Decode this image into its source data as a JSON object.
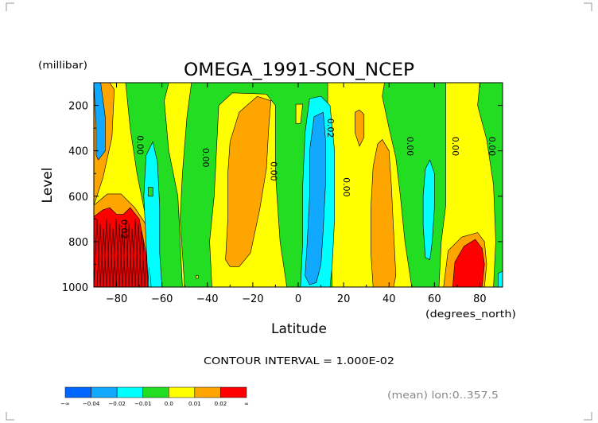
{
  "chart_data": {
    "type": "contour",
    "title": "OMEGA_1991-SON_NCEP",
    "ylabel": "Level",
    "yunit": "(millibar)",
    "xlabel": "Latitude",
    "xunit": "(degrees_north)",
    "xlim": [
      -90,
      90
    ],
    "ylim": [
      1000,
      100
    ],
    "x_ticks": [
      -80,
      -60,
      -40,
      -20,
      0,
      20,
      40,
      60,
      80
    ],
    "y_ticks": [
      200,
      400,
      600,
      800,
      1000
    ],
    "contour_interval_label": "CONTOUR INTERVAL = 1.000E-02",
    "footer_label": "(mean) lon:0..357.5",
    "contour_labels": [
      {
        "text": "0.00",
        "lat": -71,
        "lev": 375
      },
      {
        "text": "0.02",
        "lat": -78,
        "lev": 745
      },
      {
        "text": "0.00",
        "lat": -42,
        "lev": 430
      },
      {
        "text": "0.00",
        "lat": -12,
        "lev": 490
      },
      {
        "text": "0.02",
        "lat": 13,
        "lev": 300
      },
      {
        "text": "0.00",
        "lat": 20,
        "lev": 560
      },
      {
        "text": "0.00",
        "lat": 48,
        "lev": 380
      },
      {
        "text": "0.00",
        "lat": 68,
        "lev": 380
      },
      {
        "text": "0.00",
        "lat": 84,
        "lev": 380
      }
    ],
    "colorbar": {
      "colors": [
        "#0066ff",
        "#11a9ff",
        "#00ffff",
        "#22dd22",
        "#ffff00",
        "#ffa500",
        "#ff0000"
      ],
      "labels": [
        "-∞",
        "-0.04",
        "-0.02",
        "-0.01",
        "0.0",
        "0.01",
        "0.02",
        "∞"
      ]
    },
    "regions": [
      {
        "fill": "#ffff00",
        "points": [
          [
            -90,
            100
          ],
          [
            -90,
            1000
          ],
          [
            -61,
            1000
          ],
          [
            -63,
            880
          ],
          [
            -67,
            700
          ],
          [
            -71,
            500
          ],
          [
            -74,
            300
          ],
          [
            -76,
            100
          ]
        ]
      },
      {
        "fill": "#ffff00",
        "points": [
          [
            -51,
            1000
          ],
          [
            -53,
            600
          ],
          [
            -57,
            400
          ],
          [
            -59,
            180
          ],
          [
            -57,
            100
          ],
          [
            -47,
            100
          ],
          [
            -49,
            250
          ],
          [
            -51,
            500
          ],
          [
            -52,
            700
          ],
          [
            -50,
            1000
          ]
        ]
      },
      {
        "fill": "#ffff00",
        "points": [
          [
            -38,
            1000
          ],
          [
            -39,
            800
          ],
          [
            -37,
            600
          ],
          [
            -36,
            400
          ],
          [
            -35,
            200
          ],
          [
            -29,
            145
          ],
          [
            -14,
            150
          ],
          [
            -10,
            200
          ],
          [
            -10,
            500
          ],
          [
            -8,
            800
          ],
          [
            -5,
            1000
          ]
        ]
      },
      {
        "fill": "#ffff00",
        "points": [
          [
            -1,
            280
          ],
          [
            -1,
            195
          ],
          [
            2,
            195
          ],
          [
            1,
            280
          ]
        ]
      },
      {
        "fill": "#ffff00",
        "points": [
          [
            15,
            1000
          ],
          [
            14,
            700
          ],
          [
            13,
            400
          ],
          [
            13,
            100
          ],
          [
            38,
            100
          ],
          [
            37,
            160
          ],
          [
            40,
            300
          ],
          [
            43,
            430
          ],
          [
            45,
            600
          ],
          [
            47,
            800
          ],
          [
            50,
            1000
          ]
        ]
      },
      {
        "fill": "#ffff00",
        "points": [
          [
            62,
            1000
          ],
          [
            63,
            800
          ],
          [
            65,
            640
          ],
          [
            65,
            300
          ],
          [
            65,
            100
          ],
          [
            80,
            100
          ],
          [
            79,
            200
          ],
          [
            83,
            350
          ],
          [
            86,
            550
          ],
          [
            87,
            800
          ],
          [
            86,
            1000
          ]
        ]
      },
      {
        "fill": "#ffa500",
        "points": [
          [
            -90,
            100
          ],
          [
            -90,
            640
          ],
          [
            -86,
            520
          ],
          [
            -82,
            340
          ],
          [
            -81,
            130
          ],
          [
            -83,
            100
          ]
        ]
      },
      {
        "fill": "#ffa500",
        "points": [
          [
            -32,
            880
          ],
          [
            -31,
            700
          ],
          [
            -31,
            500
          ],
          [
            -30,
            360
          ],
          [
            -26,
            230
          ],
          [
            -18,
            160
          ],
          [
            -12,
            180
          ],
          [
            -13,
            300
          ],
          [
            -14,
            480
          ],
          [
            -17,
            660
          ],
          [
            -21,
            850
          ],
          [
            -26,
            910
          ],
          [
            -30,
            910
          ]
        ]
      },
      {
        "fill": "#ffa500",
        "points": [
          [
            25,
            320
          ],
          [
            25,
            230
          ],
          [
            27,
            220
          ],
          [
            29,
            240
          ],
          [
            29,
            340
          ],
          [
            27,
            380
          ]
        ]
      },
      {
        "fill": "#ffa500",
        "points": [
          [
            33,
            1000
          ],
          [
            32,
            850
          ],
          [
            32,
            650
          ],
          [
            33,
            470
          ],
          [
            35,
            370
          ],
          [
            37,
            350
          ],
          [
            40,
            400
          ],
          [
            41,
            550
          ],
          [
            42,
            750
          ],
          [
            43,
            950
          ],
          [
            42,
            1000
          ]
        ]
      },
      {
        "fill": "#ffa500",
        "points": [
          [
            64,
            1000
          ],
          [
            66,
            840
          ],
          [
            72,
            780
          ],
          [
            79,
            760
          ],
          [
            82,
            800
          ],
          [
            83,
            900
          ],
          [
            82,
            1000
          ]
        ]
      },
      {
        "fill": "#ffa500",
        "points": [
          [
            -90,
            640
          ],
          [
            -84,
            590
          ],
          [
            -78,
            590
          ],
          [
            -72,
            650
          ],
          [
            -66,
            740
          ],
          [
            -64,
            870
          ],
          [
            -62,
            1000
          ],
          [
            -90,
            1000
          ]
        ]
      },
      {
        "fill": "#ff0000",
        "points": [
          [
            -90,
            690
          ],
          [
            -86,
            660
          ],
          [
            -83,
            650
          ],
          [
            -80,
            680
          ],
          [
            -77,
            680
          ],
          [
            -74,
            650
          ],
          [
            -70,
            700
          ],
          [
            -68,
            800
          ],
          [
            -66,
            900
          ],
          [
            -64,
            1000
          ],
          [
            -90,
            1000
          ]
        ]
      },
      {
        "fill": "#ff0000",
        "points": [
          [
            68,
            1000
          ],
          [
            69,
            890
          ],
          [
            73,
            820
          ],
          [
            78,
            790
          ],
          [
            81,
            830
          ],
          [
            82,
            900
          ],
          [
            81,
            1000
          ]
        ]
      },
      {
        "fill": "#11a9ff",
        "points": [
          [
            -90,
            100
          ],
          [
            -89,
            300
          ],
          [
            -89,
            420
          ],
          [
            -88,
            440
          ],
          [
            -85,
            400
          ],
          [
            -85,
            250
          ],
          [
            -87,
            100
          ]
        ]
      },
      {
        "fill": "#00ffff",
        "points": [
          [
            -66,
            1000
          ],
          [
            -67,
            800
          ],
          [
            -68,
            600
          ],
          [
            -67,
            420
          ],
          [
            -64,
            360
          ],
          [
            -62,
            450
          ],
          [
            -61,
            650
          ],
          [
            -61,
            850
          ],
          [
            -60,
            1000
          ]
        ]
      },
      {
        "fill": "#00ffff",
        "points": [
          [
            1,
            1000
          ],
          [
            2,
            800
          ],
          [
            2,
            550
          ],
          [
            3,
            320
          ],
          [
            5,
            170
          ],
          [
            10,
            160
          ],
          [
            14,
            200
          ],
          [
            16,
            400
          ],
          [
            16,
            700
          ],
          [
            15,
            900
          ],
          [
            14,
            1000
          ]
        ]
      },
      {
        "fill": "#11a9ff",
        "points": [
          [
            3,
            950
          ],
          [
            4,
            800
          ],
          [
            5,
            600
          ],
          [
            5,
            400
          ],
          [
            7,
            250
          ],
          [
            11,
            230
          ],
          [
            12,
            350
          ],
          [
            12,
            550
          ],
          [
            11,
            750
          ],
          [
            10,
            900
          ],
          [
            8,
            980
          ],
          [
            5,
            990
          ]
        ]
      },
      {
        "fill": "#00ffff",
        "points": [
          [
            56,
            870
          ],
          [
            55,
            730
          ],
          [
            55,
            600
          ],
          [
            56,
            480
          ],
          [
            58,
            440
          ],
          [
            60,
            500
          ],
          [
            60,
            650
          ],
          [
            59,
            800
          ],
          [
            58,
            880
          ]
        ]
      },
      {
        "fill": "#00ffff",
        "points": [
          [
            88,
            1000
          ],
          [
            88,
            940
          ],
          [
            90,
            930
          ],
          [
            90,
            1000
          ]
        ]
      },
      {
        "fill": "#22dd22",
        "points": [
          [
            -66,
            600
          ],
          [
            -66,
            560
          ],
          [
            -64,
            560
          ],
          [
            -64,
            600
          ]
        ]
      },
      {
        "fill": "#ffff00",
        "points": [
          [
            -45,
            962
          ],
          [
            -45,
            950
          ],
          [
            -44,
            950
          ],
          [
            -44,
            962
          ]
        ]
      }
    ]
  }
}
